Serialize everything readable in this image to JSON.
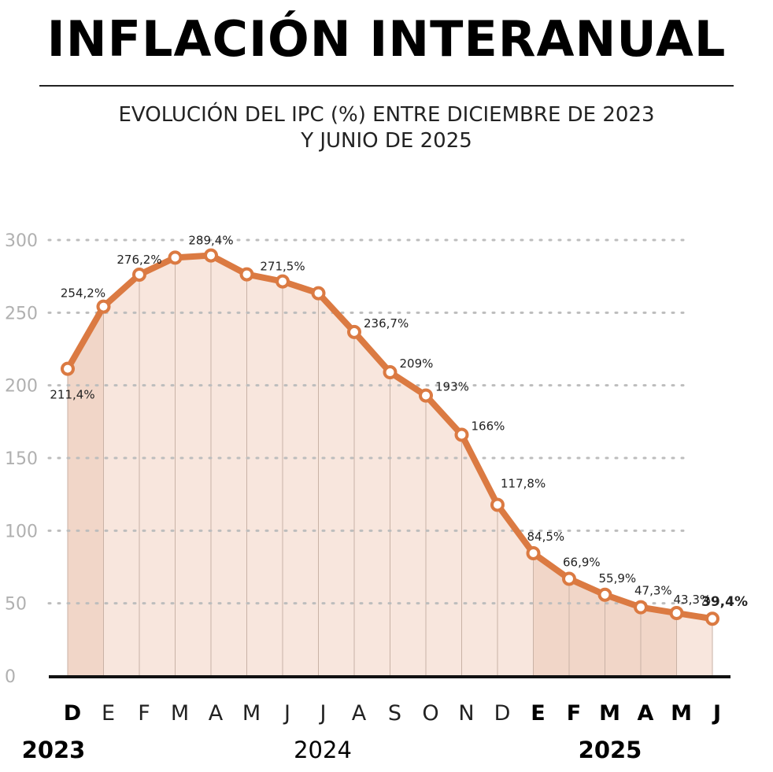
{
  "title": "INFLACIÓN INTERANUAL",
  "subtitle_line1": "EVOLUCIÓN DEL IPC (%) ENTRE DICIEMBRE DE 2023",
  "subtitle_line2": "Y JUNIO DE 2025",
  "colors": {
    "line": "#db7a42",
    "area": "#f8e6dd",
    "area_dark": "#f1d6c8",
    "grid": "#bdbdbd",
    "axis_tick_text": "#b0b0b0"
  },
  "chart_data": {
    "type": "line",
    "ylim": [
      0,
      300
    ],
    "yticks": [
      0,
      50,
      100,
      150,
      200,
      250,
      300
    ],
    "grid": true,
    "categories": [
      "D",
      "E",
      "F",
      "M",
      "A",
      "M",
      "J",
      "J",
      "A",
      "S",
      "O",
      "N",
      "D",
      "E",
      "F",
      "M",
      "A",
      "M",
      "J"
    ],
    "bold_categories": [
      0,
      13,
      14,
      15,
      16,
      17,
      18
    ],
    "values": [
      211.4,
      254.2,
      276.2,
      287.9,
      289.4,
      276.4,
      271.5,
      263.4,
      236.7,
      209,
      193,
      166,
      117.8,
      84.5,
      66.9,
      55.9,
      47.3,
      43.3,
      39.4
    ],
    "data_labels": [
      "211,4%",
      "254,2%",
      "276,2%",
      "",
      "289,4%",
      "",
      "271,5%",
      "",
      "236,7%",
      "209%",
      "193%",
      "166%",
      "117,8%",
      "84,5%",
      "66,9%",
      "55,9%",
      "47,3%",
      "43,3%",
      "39,4%"
    ],
    "year_labels": [
      {
        "text": "2023",
        "bold": true,
        "index": 0
      },
      {
        "text": "2024",
        "bold": false,
        "index": 7
      },
      {
        "text": "2025",
        "bold": true,
        "index": 15
      }
    ]
  }
}
